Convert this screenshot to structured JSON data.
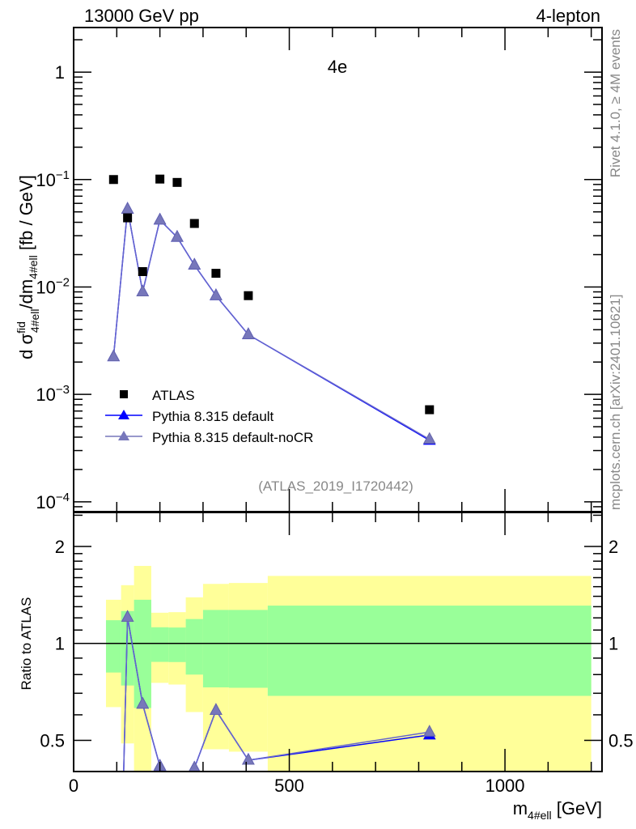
{
  "header": {
    "left": "13000 GeV pp",
    "right": "4-lepton"
  },
  "side": {
    "rivet": "Rivet 4.1.0, ≥ 4M events",
    "mcplots": "mcplots.cern.ch [arXiv:2401.10621]"
  },
  "chart_data": {
    "type": "scatter",
    "title": "4e",
    "analysis": "(ATLAS_2019_I1720442)",
    "xlabel": "m_{4#ell} [GeV]",
    "xlabel_main": "m",
    "xlabel_sub": "4#ell",
    "xlabel_unit": " [GeV]",
    "ylabel": "dσ^{fid}_{4#ell}/dm_{4#ell} [fb / GeV]",
    "ylabel_parts": {
      "d": "d σ",
      "sup": "fid",
      "sub": "4#ell",
      "mid": "/dm",
      "sub2": "4#ell",
      "unit": " [fb / GeV]"
    },
    "ratio_ylabel": "Ratio to ATLAS",
    "xlim": [
      0,
      1225
    ],
    "ylim": [
      8.1e-05,
      2.6
    ],
    "yscale": "log",
    "ratio_ylim": [
      0.4,
      2.55
    ],
    "ratio_yscale": "log",
    "x_ticks": [
      0,
      500,
      1000
    ],
    "x_tick_labels": [
      "0",
      "500",
      "1000"
    ],
    "y_ticks": [
      1,
      0.1,
      0.01,
      0.001,
      0.0001
    ],
    "y_tick_labels": [
      {
        "base": "1",
        "exp": ""
      },
      {
        "base": "10",
        "exp": "−1"
      },
      {
        "base": "10",
        "exp": "−2"
      },
      {
        "base": "10",
        "exp": "−3"
      },
      {
        "base": "10",
        "exp": "−4"
      }
    ],
    "ratio_ticks": [
      2,
      1,
      0.5
    ],
    "ratio_tick_labels": [
      "2",
      "1",
      "0.5"
    ],
    "legend_position": "bottom-left",
    "bin_edges": [
      75,
      110,
      140,
      180,
      220,
      260,
      300,
      360,
      450,
      1200
    ],
    "x": [
      92.5,
      125,
      160,
      200,
      240,
      280,
      330,
      405,
      825
    ],
    "series": [
      {
        "name": "ATLAS",
        "marker": "square",
        "color": "#000000",
        "values": [
          0.1,
          0.044,
          0.0139,
          0.101,
          0.094,
          0.039,
          0.0134,
          0.0083,
          0.00072
        ]
      },
      {
        "name": "Pythia 8.315 default",
        "marker": "triangle",
        "color": "#0000ff",
        "values": [
          0.00224,
          0.053,
          0.009,
          0.042,
          0.029,
          0.016,
          0.0083,
          0.0036,
          0.000374
        ]
      },
      {
        "name": "Pythia 8.315 default-noCR",
        "marker": "triangle",
        "color": "#7777bb",
        "values": [
          0.00224,
          0.053,
          0.009,
          0.042,
          0.029,
          0.016,
          0.0083,
          0.0036,
          0.000382
        ]
      }
    ],
    "ratio_bands": {
      "inner_color": "#99ff99",
      "outer_color": "#ffff99",
      "inner": [
        [
          0.812,
          1.18
        ],
        [
          0.74,
          1.26
        ],
        [
          0.63,
          1.366
        ],
        [
          0.876,
          1.122
        ],
        [
          0.875,
          1.12
        ],
        [
          0.8,
          1.19
        ],
        [
          0.73,
          1.27
        ],
        [
          0.728,
          1.27
        ],
        [
          0.687,
          1.31
        ]
      ],
      "outer": [
        [
          0.634,
          1.366
        ],
        [
          0.489,
          1.516
        ],
        [
          0.3,
          1.74
        ],
        [
          0.754,
          1.245
        ],
        [
          0.745,
          1.25
        ],
        [
          0.612,
          1.39
        ],
        [
          0.469,
          1.53
        ],
        [
          0.461,
          1.54
        ],
        [
          0.3,
          1.62
        ]
      ]
    }
  }
}
